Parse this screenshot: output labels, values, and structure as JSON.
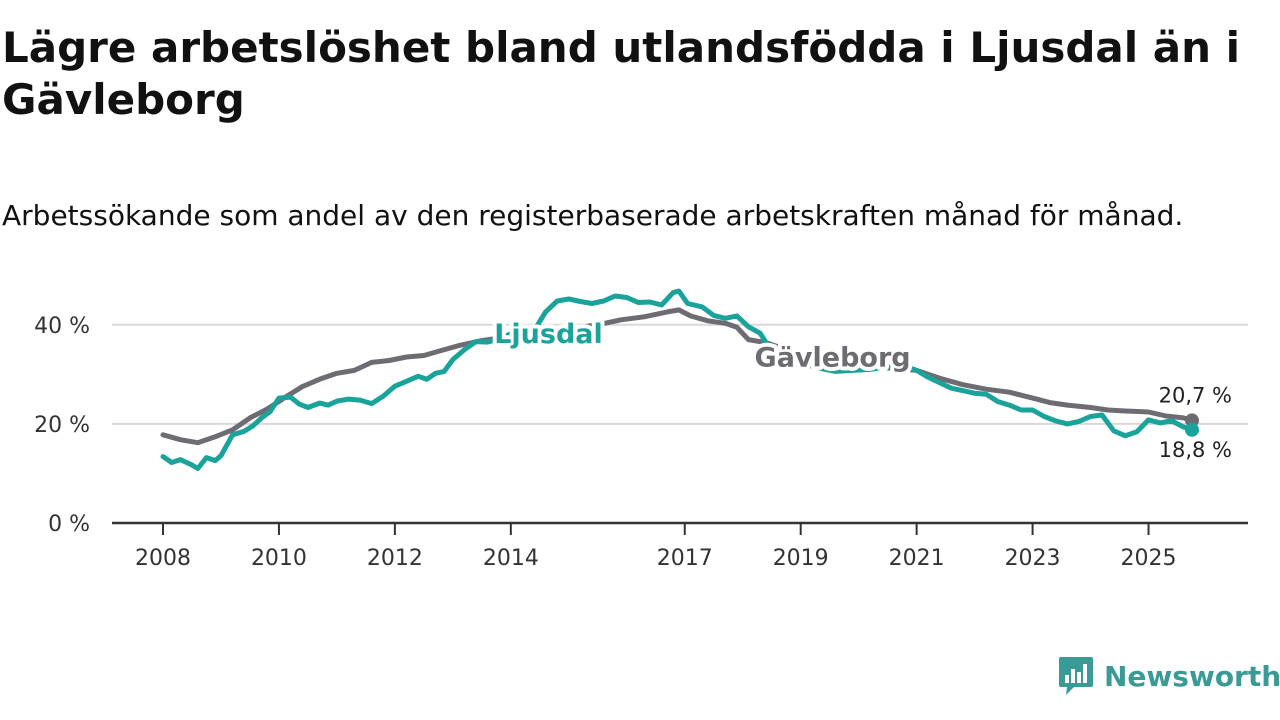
{
  "title": "Lägre arbetslöshet bland utlandsfödda i Ljusdal än i Gävleborg",
  "subtitle": "Arbetssökande som andel av den registerbaserade arbetskraften månad för månad.",
  "brand": {
    "name": "Newsworthy",
    "icon": "bar-chart-logo-icon"
  },
  "chart_data": {
    "type": "line",
    "ylim": [
      0,
      45
    ],
    "xlim": [
      2008,
      2025.75
    ],
    "yticks": [
      0,
      20,
      40
    ],
    "ytick_labels": [
      "0 %",
      "20 %",
      "40 %"
    ],
    "xticks": [
      2008,
      2010,
      2012,
      2014,
      2017,
      2019,
      2021,
      2023,
      2025
    ],
    "xtick_labels": [
      "2008",
      "2010",
      "2012",
      "2014",
      "2017",
      "2019",
      "2021",
      "2023",
      "2025"
    ],
    "grid": true,
    "series": [
      {
        "name": "Gävleborg",
        "label": "Gävleborg",
        "color": "#6e6c72",
        "end_label": "20,7 %",
        "end_value": 20.7,
        "points": [
          [
            2008.0,
            17.8
          ],
          [
            2008.3,
            16.8
          ],
          [
            2008.6,
            16.2
          ],
          [
            2008.9,
            17.4
          ],
          [
            2009.2,
            18.8
          ],
          [
            2009.5,
            21.2
          ],
          [
            2009.8,
            23.0
          ],
          [
            2010.1,
            25.3
          ],
          [
            2010.4,
            27.5
          ],
          [
            2010.7,
            29.0
          ],
          [
            2011.0,
            30.2
          ],
          [
            2011.3,
            30.8
          ],
          [
            2011.6,
            32.4
          ],
          [
            2011.9,
            32.8
          ],
          [
            2012.2,
            33.5
          ],
          [
            2012.5,
            33.8
          ],
          [
            2012.8,
            34.8
          ],
          [
            2013.1,
            35.8
          ],
          [
            2013.5,
            36.8
          ],
          [
            2013.9,
            37.5
          ],
          [
            2014.3,
            38.5
          ],
          [
            2014.7,
            39.0
          ],
          [
            2015.1,
            39.4
          ],
          [
            2015.5,
            40.0
          ],
          [
            2015.9,
            41.0
          ],
          [
            2016.3,
            41.6
          ],
          [
            2016.7,
            42.6
          ],
          [
            2016.9,
            43.0
          ],
          [
            2017.1,
            41.8
          ],
          [
            2017.4,
            40.8
          ],
          [
            2017.7,
            40.3
          ],
          [
            2017.9,
            39.5
          ],
          [
            2018.1,
            37.0
          ],
          [
            2018.4,
            36.4
          ],
          [
            2018.7,
            35.2
          ],
          [
            2019.0,
            34.2
          ],
          [
            2019.4,
            33.0
          ],
          [
            2019.8,
            31.8
          ],
          [
            2020.2,
            31.5
          ],
          [
            2020.6,
            31.2
          ],
          [
            2021.0,
            30.8
          ],
          [
            2021.4,
            29.2
          ],
          [
            2021.8,
            27.9
          ],
          [
            2022.2,
            27.0
          ],
          [
            2022.6,
            26.4
          ],
          [
            2023.0,
            25.2
          ],
          [
            2023.3,
            24.3
          ],
          [
            2023.6,
            23.8
          ],
          [
            2024.0,
            23.3
          ],
          [
            2024.3,
            22.8
          ],
          [
            2024.6,
            22.6
          ],
          [
            2025.0,
            22.4
          ],
          [
            2025.3,
            21.6
          ],
          [
            2025.6,
            21.2
          ],
          [
            2025.75,
            20.7
          ]
        ]
      },
      {
        "name": "Ljusdal",
        "label": "Ljusdal",
        "color": "#1aa39a",
        "end_label": "18,8 %",
        "end_value": 18.8,
        "points": [
          [
            2008.0,
            13.4
          ],
          [
            2008.15,
            12.2
          ],
          [
            2008.3,
            12.8
          ],
          [
            2008.5,
            11.7
          ],
          [
            2008.6,
            11.0
          ],
          [
            2008.75,
            13.2
          ],
          [
            2008.9,
            12.6
          ],
          [
            2009.0,
            13.6
          ],
          [
            2009.2,
            17.8
          ],
          [
            2009.4,
            18.5
          ],
          [
            2009.55,
            19.6
          ],
          [
            2009.7,
            21.2
          ],
          [
            2009.85,
            22.5
          ],
          [
            2010.0,
            25.2
          ],
          [
            2010.2,
            25.4
          ],
          [
            2010.35,
            24.0
          ],
          [
            2010.5,
            23.3
          ],
          [
            2010.7,
            24.2
          ],
          [
            2010.85,
            23.8
          ],
          [
            2011.0,
            24.6
          ],
          [
            2011.2,
            25.0
          ],
          [
            2011.4,
            24.8
          ],
          [
            2011.6,
            24.1
          ],
          [
            2011.8,
            25.6
          ],
          [
            2012.0,
            27.6
          ],
          [
            2012.2,
            28.6
          ],
          [
            2012.4,
            29.6
          ],
          [
            2012.55,
            29.0
          ],
          [
            2012.7,
            30.2
          ],
          [
            2012.85,
            30.6
          ],
          [
            2013.0,
            33.0
          ],
          [
            2013.2,
            35.0
          ],
          [
            2013.4,
            36.6
          ],
          [
            2013.6,
            36.5
          ],
          [
            2013.8,
            37.1
          ],
          [
            2014.0,
            38.2
          ],
          [
            2014.2,
            38.7
          ],
          [
            2014.4,
            38.8
          ],
          [
            2014.6,
            42.6
          ],
          [
            2014.8,
            44.8
          ],
          [
            2015.0,
            45.2
          ],
          [
            2015.2,
            44.7
          ],
          [
            2015.4,
            44.3
          ],
          [
            2015.6,
            44.8
          ],
          [
            2015.8,
            45.8
          ],
          [
            2016.0,
            45.5
          ],
          [
            2016.2,
            44.5
          ],
          [
            2016.4,
            44.6
          ],
          [
            2016.6,
            44.0
          ],
          [
            2016.8,
            46.5
          ],
          [
            2016.9,
            46.8
          ],
          [
            2017.05,
            44.3
          ],
          [
            2017.3,
            43.6
          ],
          [
            2017.5,
            41.9
          ],
          [
            2017.7,
            41.3
          ],
          [
            2017.9,
            41.8
          ],
          [
            2018.1,
            39.6
          ],
          [
            2018.3,
            38.3
          ],
          [
            2018.5,
            34.6
          ],
          [
            2018.7,
            33.6
          ],
          [
            2019.0,
            32.3
          ],
          [
            2019.3,
            31.3
          ],
          [
            2019.6,
            30.6
          ],
          [
            2019.9,
            30.8
          ],
          [
            2020.2,
            31.0
          ],
          [
            2020.5,
            31.5
          ],
          [
            2020.8,
            31.6
          ],
          [
            2021.0,
            30.8
          ],
          [
            2021.2,
            29.4
          ],
          [
            2021.4,
            28.3
          ],
          [
            2021.6,
            27.2
          ],
          [
            2021.8,
            26.7
          ],
          [
            2022.0,
            26.2
          ],
          [
            2022.2,
            26.0
          ],
          [
            2022.4,
            24.5
          ],
          [
            2022.6,
            23.8
          ],
          [
            2022.8,
            22.8
          ],
          [
            2023.0,
            22.8
          ],
          [
            2023.2,
            21.5
          ],
          [
            2023.4,
            20.6
          ],
          [
            2023.6,
            20.0
          ],
          [
            2023.8,
            20.5
          ],
          [
            2024.0,
            21.5
          ],
          [
            2024.2,
            21.8
          ],
          [
            2024.4,
            18.6
          ],
          [
            2024.6,
            17.6
          ],
          [
            2024.8,
            18.4
          ],
          [
            2025.0,
            20.8
          ],
          [
            2025.2,
            20.2
          ],
          [
            2025.4,
            20.6
          ],
          [
            2025.6,
            19.4
          ],
          [
            2025.75,
            18.8
          ]
        ]
      }
    ]
  }
}
